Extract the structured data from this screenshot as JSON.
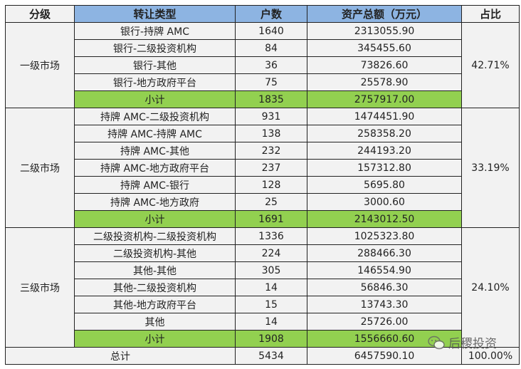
{
  "header": {
    "level": "分级",
    "type": "转让类型",
    "count": "户数",
    "assets": "资产总额（万元）",
    "ratio": "占比"
  },
  "groups": [
    {
      "level": "一级市场",
      "ratio": "42.71%",
      "rows": [
        {
          "type": "银行-持牌 AMC",
          "count": "1640",
          "assets": "2313055.90"
        },
        {
          "type": "银行-二级投资机构",
          "count": "84",
          "assets": "345455.60"
        },
        {
          "type": "银行-其他",
          "count": "36",
          "assets": "73826.60"
        },
        {
          "type": "银行-地方政府平台",
          "count": "75",
          "assets": "25578.90"
        }
      ],
      "subtotal": {
        "label": "小计",
        "count": "1835",
        "assets": "2757917.00"
      }
    },
    {
      "level": "二级市场",
      "ratio": "33.19%",
      "rows": [
        {
          "type": "持牌 AMC-二级投资机构",
          "count": "931",
          "assets": "1474451.90"
        },
        {
          "type": "持牌 AMC-持牌 AMC",
          "count": "138",
          "assets": "258358.20"
        },
        {
          "type": "持牌 AMC-其他",
          "count": "232",
          "assets": "244193.20"
        },
        {
          "type": "持牌 AMC-地方政府平台",
          "count": "237",
          "assets": "157312.80"
        },
        {
          "type": "持牌 AMC-银行",
          "count": "128",
          "assets": "5695.80"
        },
        {
          "type": "持牌 AMC-地方政府",
          "count": "25",
          "assets": "3000.60"
        }
      ],
      "subtotal": {
        "label": "小计",
        "count": "1691",
        "assets": "2143012.50"
      }
    },
    {
      "level": "三级市场",
      "ratio": "24.10%",
      "rows": [
        {
          "type": "二级投资机构-二级投资机构",
          "count": "1336",
          "assets": "1025323.80"
        },
        {
          "type": "二级投资机构-其他",
          "count": "224",
          "assets": "288466.30"
        },
        {
          "type": "其他-其他",
          "count": "305",
          "assets": "146554.90"
        },
        {
          "type": "其他-二级投资机构",
          "count": "14",
          "assets": "56846.30"
        },
        {
          "type": "其他-地方政府平台",
          "count": "15",
          "assets": "13743.30"
        },
        {
          "type": "其他",
          "count": "14",
          "assets": "25726.00"
        }
      ],
      "subtotal": {
        "label": "小计",
        "count": "1908",
        "assets": "1556660.60"
      }
    }
  ],
  "total": {
    "label": "总计",
    "count": "5434",
    "assets": "6457590.10",
    "ratio": "100.00%"
  },
  "watermark": {
    "text": "后稷投资",
    "icon": "wechat-icon"
  },
  "colors": {
    "header": "#8db4e2",
    "subtotal": "#92d050",
    "cell": "#f2f2f2"
  }
}
